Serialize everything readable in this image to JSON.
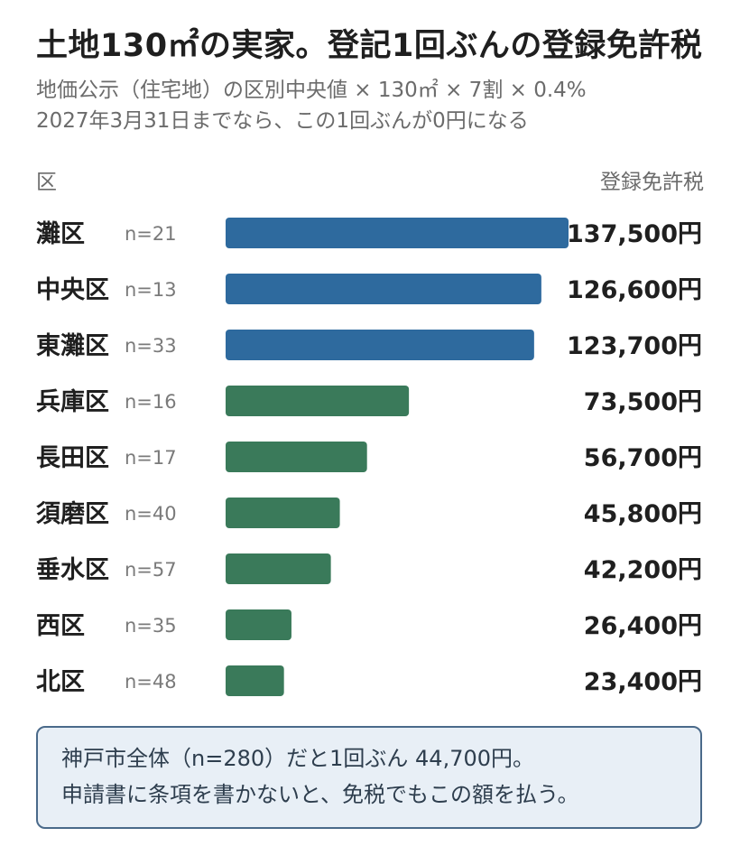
{
  "title": "土地130㎡の実家。登記1回ぶんの登録免許税",
  "subtitle_line1": "地価公示（住宅地）の区別中央値 × 130㎡ × 7割 × 0.4%",
  "subtitle_line2": "2027年3月31日までなら、この1回ぶんが0円になる",
  "note_line1": "神戸市全体（n=280）だと1回ぶん 44,700円。",
  "note_line2": "申請書に条項を書かないと、免税でもこの額を払う。",
  "colors": {
    "high": "#2e6a9e",
    "low": "#3a7a5a"
  },
  "chart_data": {
    "type": "bar",
    "orientation": "horizontal",
    "category_header": "区",
    "value_header": "登録免許税",
    "unit": "円",
    "categories": [
      "灘区",
      "中央区",
      "東灘区",
      "兵庫区",
      "長田区",
      "須磨区",
      "垂水区",
      "西区",
      "北区"
    ],
    "n_labels": [
      "n=21",
      "n=13",
      "n=33",
      "n=16",
      "n=17",
      "n=40",
      "n=57",
      "n=35",
      "n=48"
    ],
    "values": [
      137500,
      126600,
      123700,
      73500,
      56700,
      45800,
      42200,
      26400,
      23400
    ],
    "value_labels": [
      "137,500円",
      "126,600円",
      "123,700円",
      "73,500円",
      "56,700円",
      "45,800円",
      "42,200円",
      "26,400円",
      "23,400円"
    ],
    "bar_colors": [
      "#2e6a9e",
      "#2e6a9e",
      "#2e6a9e",
      "#3a7a5a",
      "#3a7a5a",
      "#3a7a5a",
      "#3a7a5a",
      "#3a7a5a",
      "#3a7a5a"
    ],
    "xlim": [
      0,
      137500
    ],
    "grid": false,
    "legend": "none"
  }
}
